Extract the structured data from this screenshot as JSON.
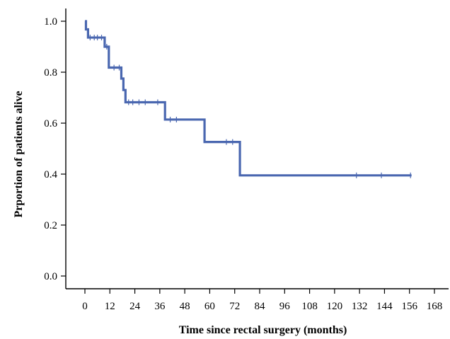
{
  "chart_data": {
    "type": "line",
    "subtype": "kaplan-meier-survival",
    "title": "",
    "xlabel": "Time since rectal surgery (months)",
    "ylabel": "Prportion of patients alive",
    "xlim": [
      0,
      168
    ],
    "ylim": [
      0,
      1.0
    ],
    "x_ticks": [
      0,
      12,
      24,
      36,
      48,
      60,
      72,
      84,
      96,
      108,
      120,
      132,
      144,
      156,
      168
    ],
    "y_ticks": [
      0.0,
      0.2,
      0.4,
      0.6,
      0.8,
      1.0
    ],
    "y_tick_labels": [
      "0.0",
      "0.2",
      "0.4",
      "0.6",
      "0.8",
      "1.0"
    ],
    "grid": false,
    "legend": "none",
    "line_color": "#4a67b0",
    "series": [
      {
        "steps": [
          {
            "x": 0,
            "y": 1.0
          },
          {
            "x": 0.5,
            "y": 0.968
          },
          {
            "x": 1.5,
            "y": 0.936
          },
          {
            "x": 9.5,
            "y": 0.9
          },
          {
            "x": 11.5,
            "y": 0.818
          },
          {
            "x": 17.5,
            "y": 0.775
          },
          {
            "x": 18.5,
            "y": 0.73
          },
          {
            "x": 19.5,
            "y": 0.682
          },
          {
            "x": 38.5,
            "y": 0.614
          },
          {
            "x": 57.5,
            "y": 0.526
          },
          {
            "x": 74.5,
            "y": 0.395
          }
        ],
        "end_x": 157,
        "censored": [
          {
            "x": 2.5,
            "y": 0.936
          },
          {
            "x": 4.5,
            "y": 0.936
          },
          {
            "x": 6.0,
            "y": 0.936
          },
          {
            "x": 8.0,
            "y": 0.936
          },
          {
            "x": 10.5,
            "y": 0.9
          },
          {
            "x": 14.0,
            "y": 0.818
          },
          {
            "x": 16.5,
            "y": 0.818
          },
          {
            "x": 21.0,
            "y": 0.682
          },
          {
            "x": 23.0,
            "y": 0.682
          },
          {
            "x": 26.0,
            "y": 0.682
          },
          {
            "x": 29.0,
            "y": 0.682
          },
          {
            "x": 35.0,
            "y": 0.682
          },
          {
            "x": 41.0,
            "y": 0.614
          },
          {
            "x": 44.0,
            "y": 0.614
          },
          {
            "x": 68.0,
            "y": 0.526
          },
          {
            "x": 71.0,
            "y": 0.526
          },
          {
            "x": 130.5,
            "y": 0.395
          },
          {
            "x": 142.5,
            "y": 0.395
          },
          {
            "x": 156.5,
            "y": 0.395
          }
        ]
      }
    ]
  }
}
